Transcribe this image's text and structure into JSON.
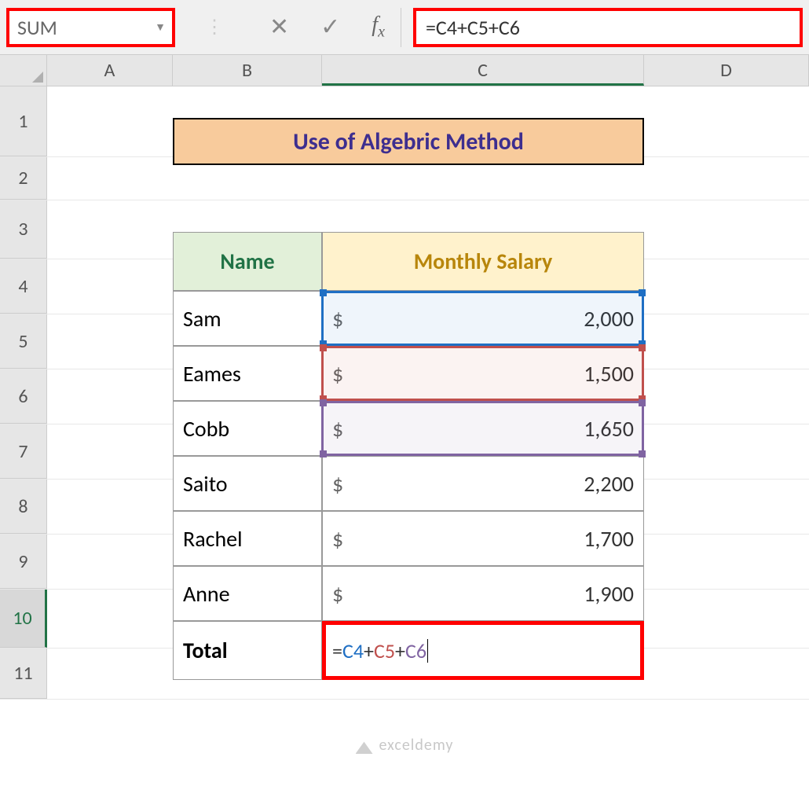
{
  "formula_bar": {
    "name_box": "SUM",
    "formula": "=C4+C5+C6",
    "parts": {
      "eq": "=",
      "c4": "C4",
      "op": "+",
      "c5": "C5",
      "c6": "C6"
    }
  },
  "columns": {
    "A": "A",
    "B": "B",
    "C": "C",
    "D": "D"
  },
  "row_labels": {
    "r1": "1",
    "r2": "2",
    "r3": "3",
    "r4": "4",
    "r5": "5",
    "r6": "6",
    "r7": "7",
    "r8": "8",
    "r9": "9",
    "r10": "10",
    "r11": "11"
  },
  "title": "Use of Algebric Method",
  "headers": {
    "name": "Name",
    "salary": "Monthly Salary"
  },
  "data": [
    {
      "name": "Sam",
      "salary": "2,000"
    },
    {
      "name": "Eames",
      "salary": "1,500"
    },
    {
      "name": "Cobb",
      "salary": "1,650"
    },
    {
      "name": "Saito",
      "salary": "2,200"
    },
    {
      "name": "Rachel",
      "salary": "1,700"
    },
    {
      "name": "Anne",
      "salary": "1,900"
    }
  ],
  "total_label": "Total",
  "currency": "$",
  "watermark": "exceldemy",
  "colors": {
    "ref_c4": "#1f6fc4",
    "ref_c5": "#c0504d",
    "ref_c6": "#8064a2",
    "highlight_border": "#ff0000",
    "title_bg": "#f8cb9c",
    "title_text": "#3d2e8f",
    "name_header_bg": "#e2f0d9",
    "name_header_text": "#217346",
    "salary_header_bg": "#fff2cc",
    "salary_header_text": "#b8860b"
  }
}
